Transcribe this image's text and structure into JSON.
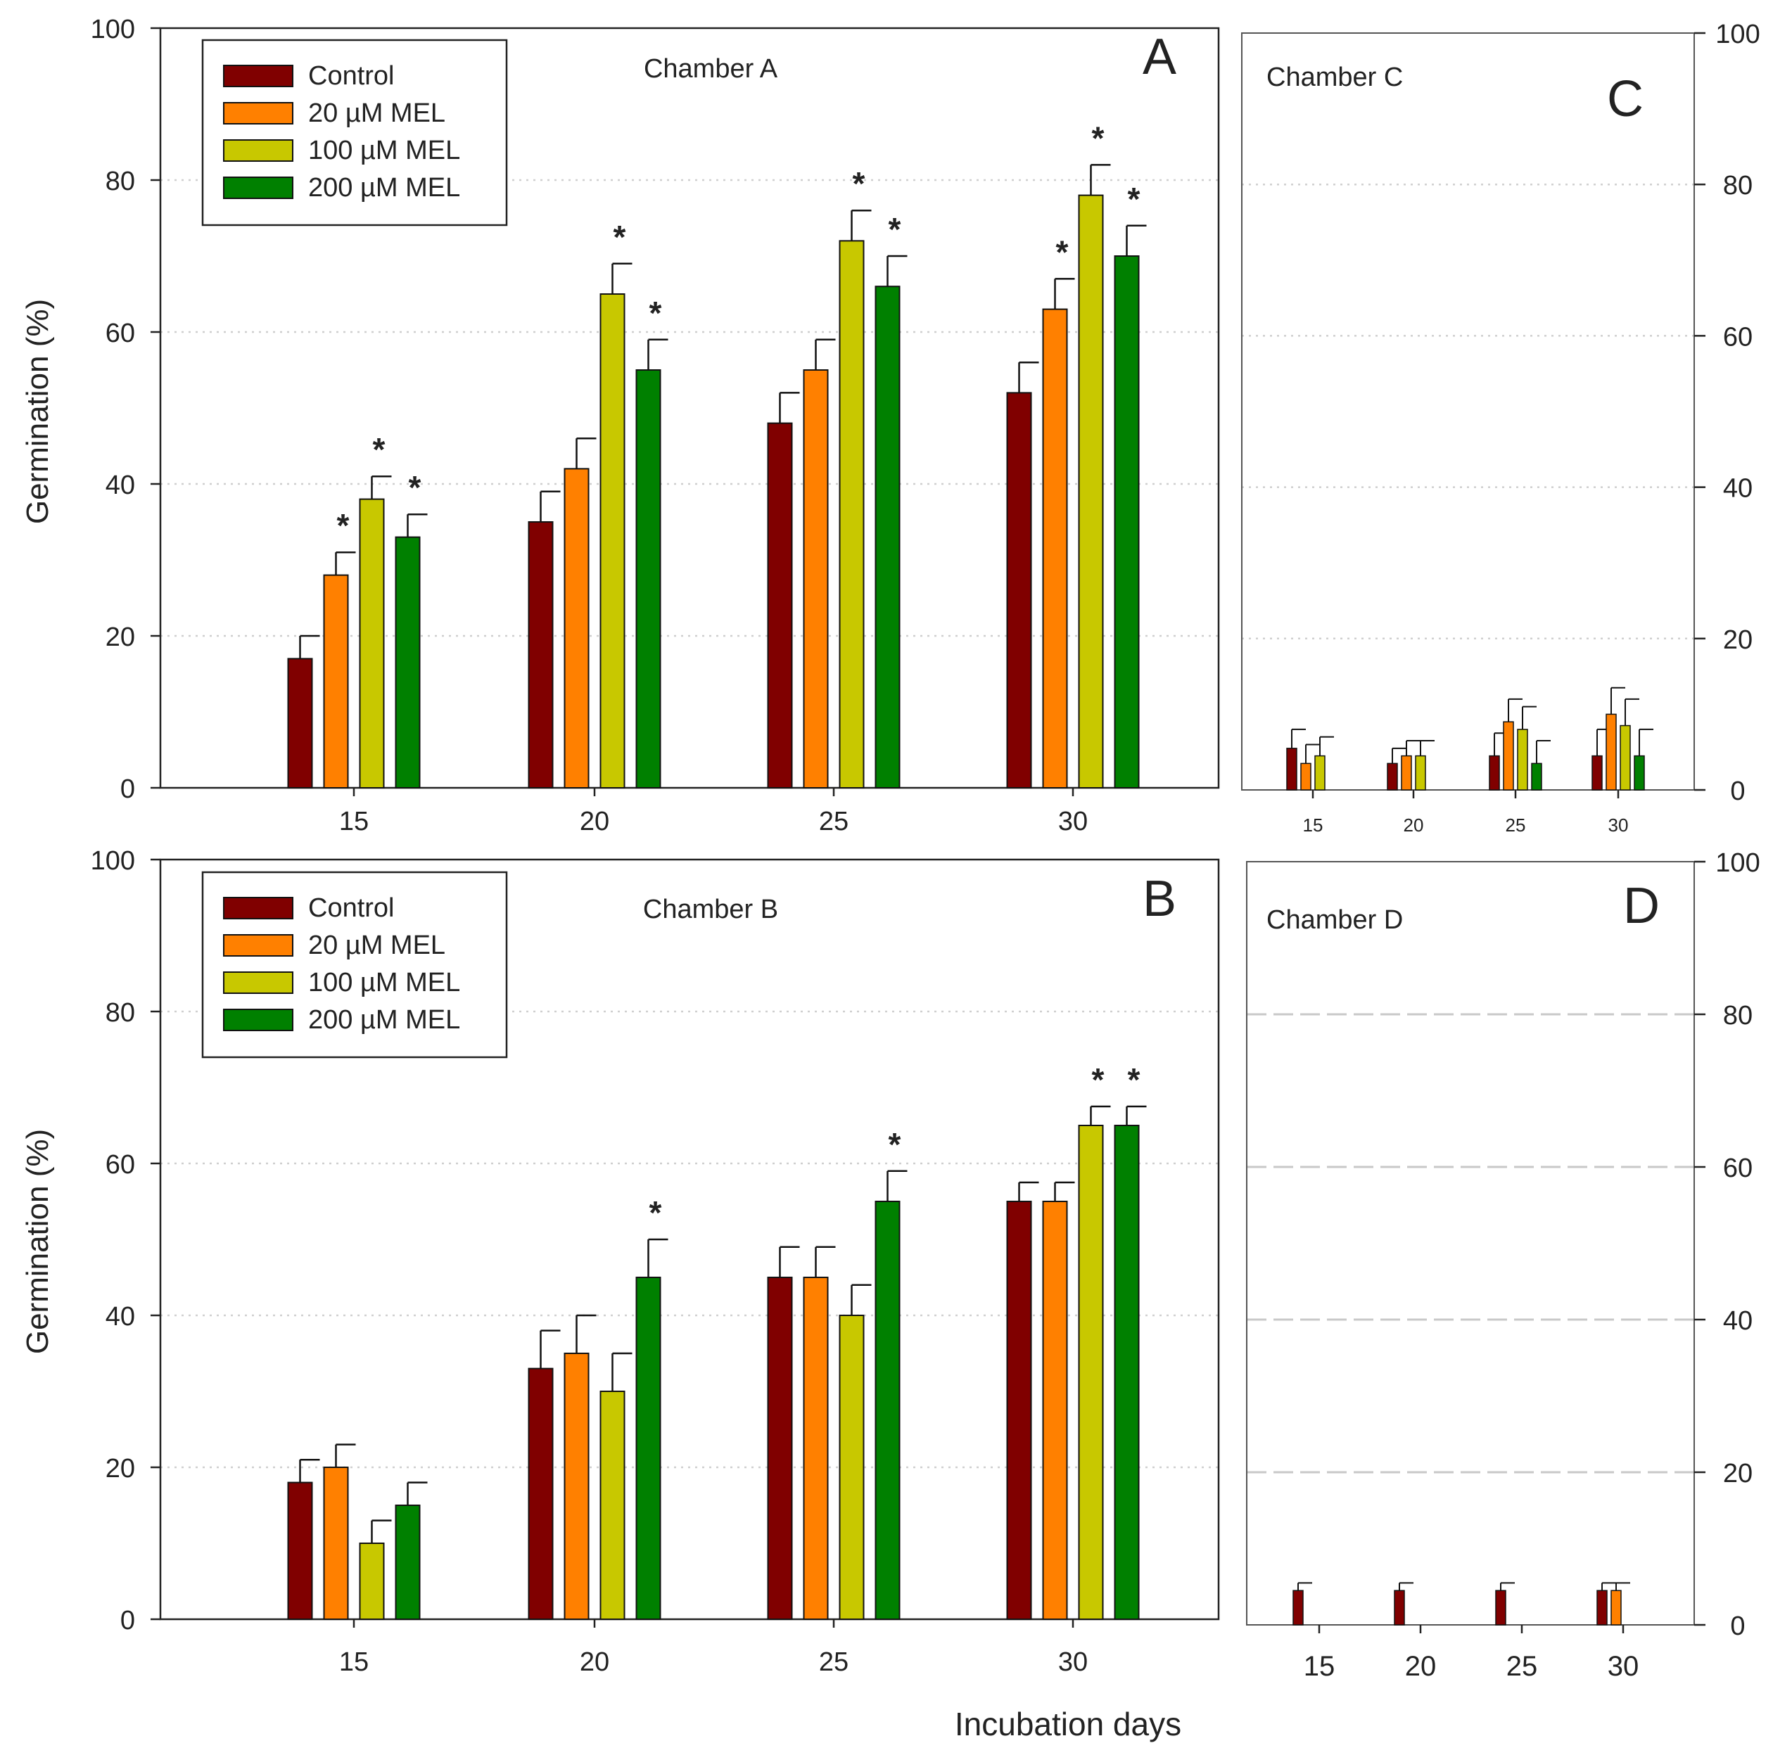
{
  "figure": {
    "xlabel": "Incubation days",
    "ylabel": "Germination (%)"
  },
  "colors": {
    "Control": "#800000",
    "20 µM MEL": "#ff8000",
    "100 µM MEL": "#c8c800",
    "200 µM MEL": "#008000"
  },
  "chart_data": [
    {
      "id": "A",
      "type": "bar",
      "panel_letter": "A",
      "title": "Chamber A",
      "categories": [
        "15",
        "20",
        "25",
        "30"
      ],
      "ylim": [
        0,
        100
      ],
      "yticks": [
        "0",
        "20",
        "40",
        "60",
        "80",
        "100"
      ],
      "ylabel": "Germination (%)",
      "y_axis_side": "left",
      "legend": [
        "Control",
        "20 µM MEL",
        "100 µM MEL",
        "200 µM MEL"
      ],
      "legend_position": "top-left",
      "grid": "dotted",
      "series": [
        {
          "name": "Control",
          "values": [
            17,
            35,
            48,
            52
          ],
          "errors": [
            3,
            4,
            4,
            4
          ],
          "significant": [
            false,
            false,
            false,
            false
          ]
        },
        {
          "name": "20 µM MEL",
          "values": [
            28,
            42,
            55,
            63
          ],
          "errors": [
            3,
            4,
            4,
            4
          ],
          "significant": [
            true,
            false,
            false,
            true
          ]
        },
        {
          "name": "100 µM MEL",
          "values": [
            38,
            65,
            72,
            78
          ],
          "errors": [
            3,
            4,
            4,
            4
          ],
          "significant": [
            true,
            true,
            true,
            true
          ]
        },
        {
          "name": "200 µM MEL",
          "values": [
            33,
            55,
            66,
            70
          ],
          "errors": [
            3,
            4,
            4,
            4
          ],
          "significant": [
            true,
            true,
            true,
            true
          ]
        }
      ]
    },
    {
      "id": "C",
      "type": "bar",
      "panel_letter": "C",
      "title": "Chamber C",
      "categories": [
        "15",
        "20",
        "25",
        "30"
      ],
      "ylim": [
        0,
        100
      ],
      "yticks": [
        "0",
        "20",
        "40",
        "60",
        "80",
        "100"
      ],
      "y_axis_side": "right",
      "grid": "dotted",
      "series": [
        {
          "name": "Control",
          "values": [
            5.5,
            3.5,
            4.5,
            4.5
          ],
          "errors": [
            2.5,
            2,
            3,
            3.5
          ],
          "significant": [
            false,
            false,
            false,
            false
          ]
        },
        {
          "name": "20 µM MEL",
          "values": [
            3.5,
            4.5,
            9,
            10
          ],
          "errors": [
            2.5,
            2,
            3,
            3.5
          ],
          "significant": [
            false,
            false,
            false,
            false
          ]
        },
        {
          "name": "100 µM MEL",
          "values": [
            4.5,
            4.5,
            8,
            8.5
          ],
          "errors": [
            2.5,
            2,
            3,
            3.5
          ],
          "significant": [
            false,
            false,
            false,
            false
          ]
        },
        {
          "name": "200 µM MEL",
          "values": [
            0,
            0,
            3.5,
            4.5
          ],
          "errors": [
            0,
            0,
            3,
            3.5
          ],
          "significant": [
            false,
            false,
            false,
            false
          ]
        }
      ]
    },
    {
      "id": "B",
      "type": "bar",
      "panel_letter": "B",
      "title": "Chamber B",
      "categories": [
        "15",
        "20",
        "25",
        "30"
      ],
      "ylim": [
        0,
        100
      ],
      "yticks": [
        "0",
        "20",
        "40",
        "60",
        "80",
        "100"
      ],
      "ylabel": "Germination (%)",
      "y_axis_side": "left",
      "legend": [
        "Control",
        "20 µM MEL",
        "100 µM MEL",
        "200 µM MEL"
      ],
      "legend_position": "top-left",
      "grid": "dotted",
      "series": [
        {
          "name": "Control",
          "values": [
            18,
            33,
            45,
            55
          ],
          "errors": [
            3,
            5,
            4,
            2.5
          ],
          "significant": [
            false,
            false,
            false,
            false
          ]
        },
        {
          "name": "20 µM MEL",
          "values": [
            20,
            35,
            45,
            55
          ],
          "errors": [
            3,
            5,
            4,
            2.5
          ],
          "significant": [
            false,
            false,
            false,
            false
          ]
        },
        {
          "name": "100 µM MEL",
          "values": [
            10,
            30,
            40,
            65
          ],
          "errors": [
            3,
            5,
            4,
            2.5
          ],
          "significant": [
            false,
            false,
            false,
            true
          ]
        },
        {
          "name": "200 µM MEL",
          "values": [
            15,
            45,
            55,
            65
          ],
          "errors": [
            3,
            5,
            4,
            2.5
          ],
          "significant": [
            false,
            true,
            true,
            true
          ]
        }
      ]
    },
    {
      "id": "D",
      "type": "bar",
      "panel_letter": "D",
      "title": "Chamber D",
      "categories": [
        "15",
        "20",
        "25",
        "30"
      ],
      "ylim": [
        0,
        100
      ],
      "yticks": [
        "0",
        "20",
        "40",
        "60",
        "80",
        "100"
      ],
      "y_axis_side": "right",
      "grid": "dashed",
      "series": [
        {
          "name": "Control",
          "values": [
            4.5,
            4.5,
            4.5,
            4.5
          ],
          "errors": [
            1,
            1,
            1,
            1
          ],
          "significant": [
            false,
            false,
            false,
            false
          ]
        },
        {
          "name": "20 µM MEL",
          "values": [
            0,
            0,
            0,
            4.5
          ],
          "errors": [
            0,
            0,
            0,
            1
          ],
          "significant": [
            false,
            false,
            false,
            false
          ]
        },
        {
          "name": "100 µM MEL",
          "values": [
            0,
            0,
            0,
            0
          ],
          "errors": [
            0,
            0,
            0,
            0
          ],
          "significant": [
            false,
            false,
            false,
            false
          ]
        },
        {
          "name": "200 µM MEL",
          "values": [
            0,
            0,
            0,
            0
          ],
          "errors": [
            0,
            0,
            0,
            0
          ],
          "significant": [
            false,
            false,
            false,
            false
          ]
        }
      ]
    }
  ]
}
